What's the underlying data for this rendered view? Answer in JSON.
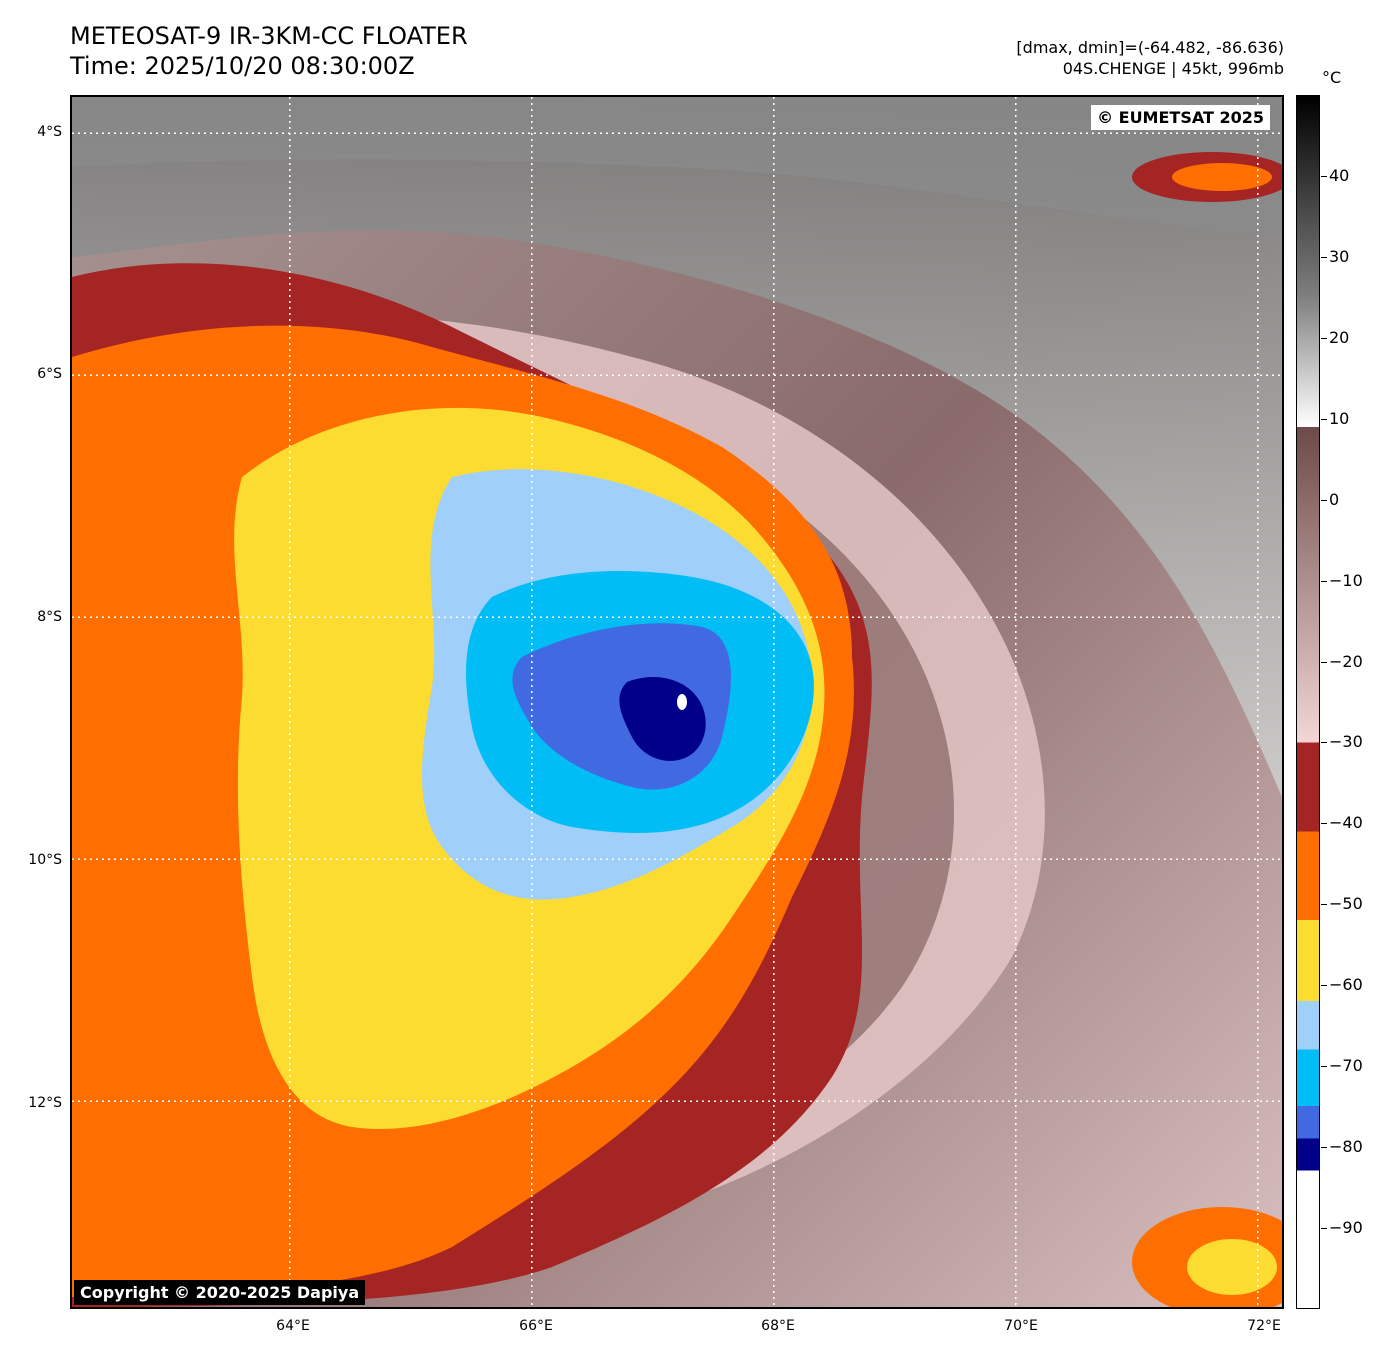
{
  "header": {
    "title": "METEOSAT-9 IR-3KM-CC FLOATER",
    "time": "Time: 2025/10/20 08:30:00Z",
    "range": "[dmax, dmin]=(-64.482, -86.636)",
    "storm": "04S.CHENGE | 45kt, 996mb"
  },
  "map": {
    "credit_top": "© EUMETSAT 2025",
    "credit_bottom": "Copyright © 2020-2025 Dapiya",
    "lat_labels": [
      "4°S",
      "6°S",
      "8°S",
      "10°S",
      "12°S"
    ],
    "lon_labels": [
      "64°E",
      "66°E",
      "68°E",
      "70°E",
      "72°E"
    ],
    "extent": {
      "lon_min": 62.2,
      "lon_max": 72.2,
      "lat_top": -3.7,
      "lat_bottom": -13.7
    },
    "grid": "dotted-white",
    "storm_center": {
      "lon": 67.2,
      "lat": -8.75
    }
  },
  "colorbar": {
    "unit": "°C",
    "ticks": [
      "40",
      "30",
      "20",
      "10",
      "0",
      "−10",
      "−20",
      "−30",
      "−40",
      "−50",
      "−60",
      "−70",
      "−80",
      "−90"
    ],
    "vmin": -100,
    "vmax": 50,
    "colors": {
      "black": "#000000",
      "gray": "#808080",
      "white": "#ffffff",
      "brown": "#6e4a4a",
      "pink": "#f2d6d6",
      "dark_red": "#a52424",
      "orange": "#ff6e00",
      "yellow": "#fcdc30",
      "light_blue": "#a0d0fa",
      "cyan": "#00bef5",
      "royal_blue": "#4169e1",
      "navy": "#00008b"
    }
  }
}
